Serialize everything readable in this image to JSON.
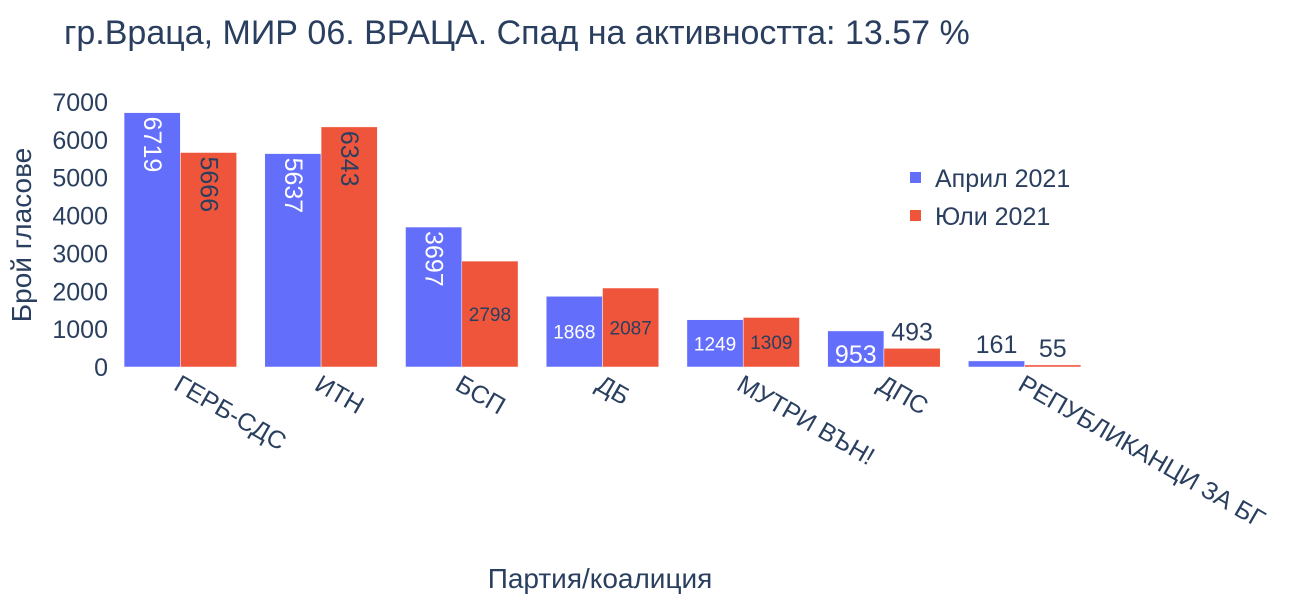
{
  "chart_data": {
    "type": "bar",
    "title": "гр.Враца, МИР 06. ВРАЦА. Спад на активността: 13.57 %",
    "xlabel": "Партия/коалиция",
    "ylabel": "Брой гласове",
    "ylim": [
      0,
      7000
    ],
    "yticks": [
      0,
      1000,
      2000,
      3000,
      4000,
      5000,
      6000,
      7000
    ],
    "grid": false,
    "legend_position": "top-right",
    "categories": [
      "ГЕРБ-СДС",
      "ИТН",
      "БСП",
      "ДБ",
      "МУТРИ ВЪН!",
      "ДПС",
      "РЕПУБЛИКАНЦИ ЗА БГ"
    ],
    "series": [
      {
        "name": "Април 2021",
        "color": "#636efa",
        "values": [
          6719,
          5637,
          3697,
          1868,
          1249,
          953,
          161
        ]
      },
      {
        "name": "Юли 2021",
        "color": "#ef553b",
        "values": [
          5666,
          6343,
          2798,
          2087,
          1309,
          493,
          55
        ]
      }
    ]
  }
}
